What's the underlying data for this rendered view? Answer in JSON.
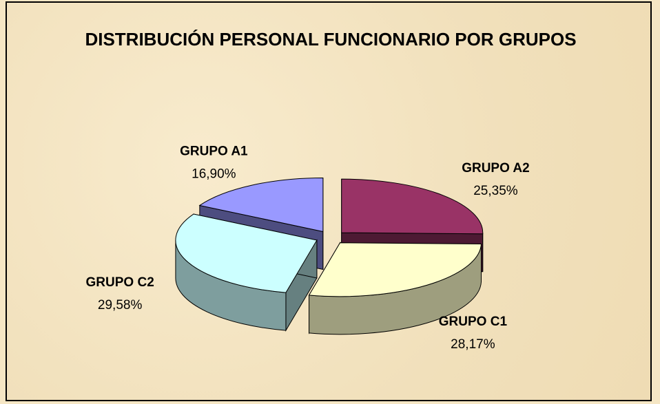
{
  "chart_data": {
    "type": "pie3d",
    "title": "DISTRIBUCIÓN PERSONAL FUNCIONARIO POR GRUPOS",
    "categories": [
      "GRUPO A1",
      "GRUPO A2",
      "GRUPO C1",
      "GRUPO C2"
    ],
    "values": [
      16.9,
      25.35,
      28.17,
      29.58
    ],
    "value_labels": [
      "16,90%",
      "25,35%",
      "28,17%",
      "29,58%"
    ],
    "colors": [
      "#9999ff",
      "#993366",
      "#ffffcc",
      "#ccffff"
    ]
  }
}
